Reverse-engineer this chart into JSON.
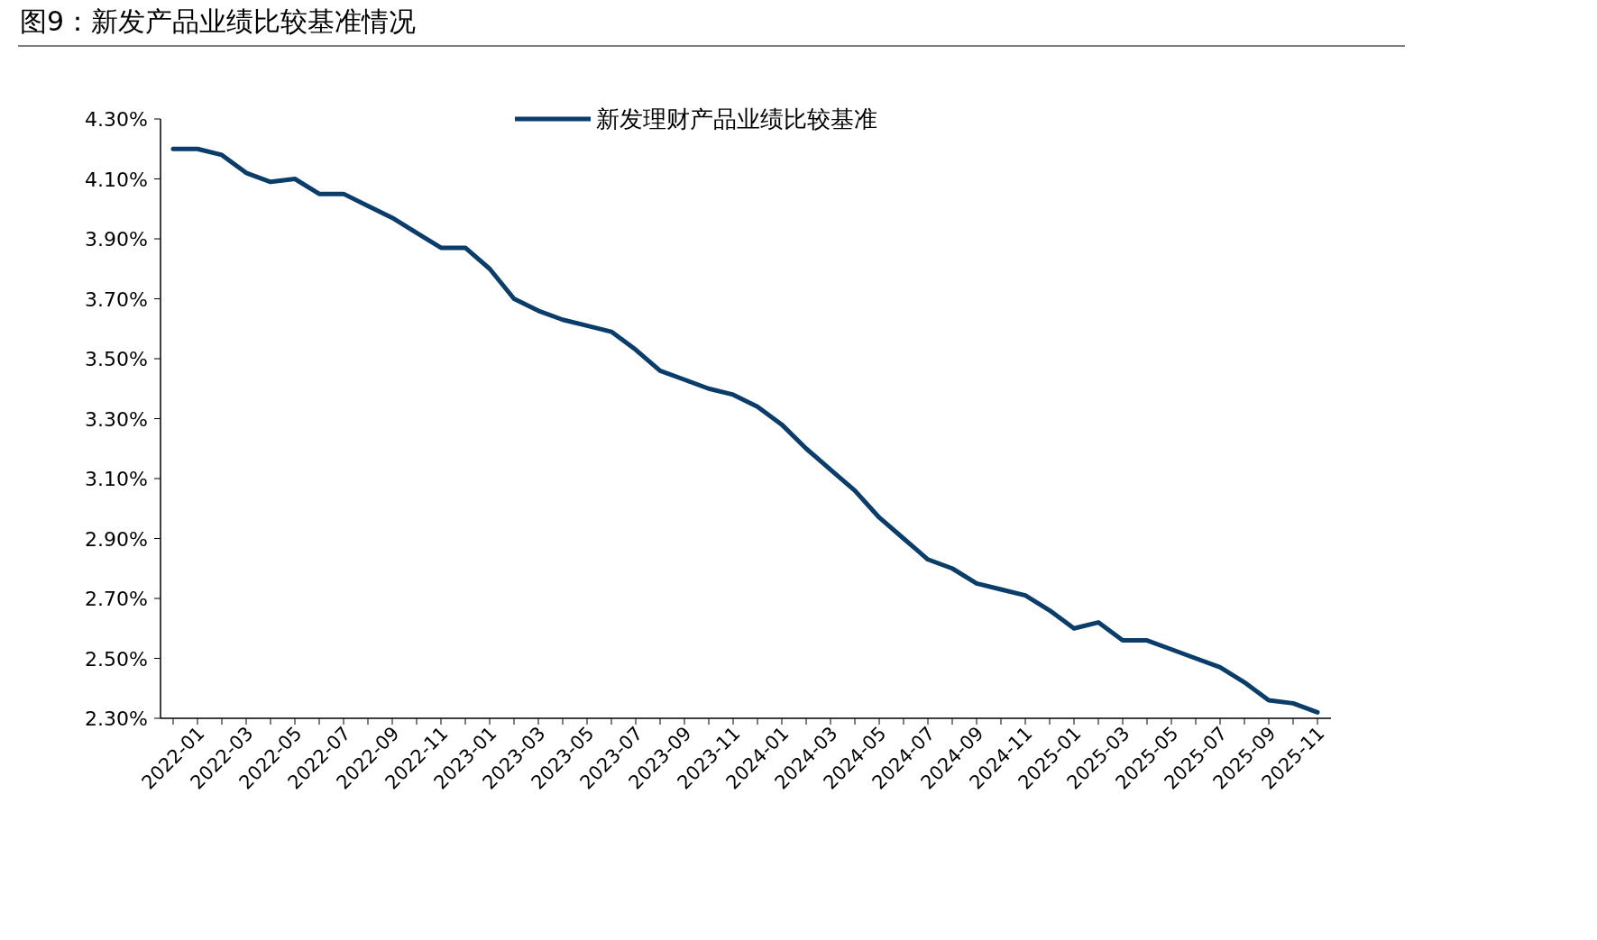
{
  "chart_data": {
    "type": "line",
    "title": "图9：新发产品业绩比较基准情况",
    "categories": [
      "2022-01",
      null,
      "2022-03",
      null,
      "2022-05",
      null,
      "2022-07",
      null,
      "2022-09",
      null,
      "2022-11",
      null,
      "2023-01",
      null,
      "2023-03",
      null,
      "2023-05",
      null,
      "2023-07",
      null,
      "2023-09",
      null,
      "2023-11",
      null,
      "2024-01",
      null,
      "2024-03",
      null,
      "2024-05",
      null,
      "2024-07",
      null,
      "2024-09",
      null,
      "2024-11",
      null,
      "2025-01",
      null,
      "2025-03",
      null,
      "2025-05",
      null,
      "2025-07",
      null,
      "2025-09",
      null,
      "2025-11",
      null
    ],
    "series": [
      {
        "name": "新发理财产品业绩比较基准",
        "color": "#0b3d6b",
        "values": [
          4.2,
          4.2,
          4.18,
          4.12,
          4.09,
          4.1,
          4.05,
          4.05,
          4.01,
          3.97,
          3.92,
          3.87,
          3.87,
          3.8,
          3.7,
          3.66,
          3.63,
          3.61,
          3.59,
          3.53,
          3.46,
          3.43,
          3.4,
          3.38,
          3.34,
          3.28,
          3.2,
          3.13,
          3.06,
          2.97,
          2.9,
          2.83,
          2.8,
          2.75,
          2.73,
          2.71,
          2.66,
          2.6,
          2.62,
          2.56,
          2.56,
          2.53,
          2.5,
          2.47,
          2.42,
          2.36,
          2.35,
          2.32
        ]
      }
    ],
    "ylim": [
      2.3,
      4.3
    ],
    "yticks": [
      {
        "value": 2.3,
        "label": "2.30%"
      },
      {
        "value": 2.5,
        "label": "2.50%"
      },
      {
        "value": 2.7,
        "label": "2.70%"
      },
      {
        "value": 2.9,
        "label": "2.90%"
      },
      {
        "value": 3.1,
        "label": "3.10%"
      },
      {
        "value": 3.3,
        "label": "3.30%"
      },
      {
        "value": 3.5,
        "label": "3.50%"
      },
      {
        "value": 3.7,
        "label": "3.70%"
      },
      {
        "value": 3.9,
        "label": "3.90%"
      },
      {
        "value": 4.1,
        "label": "4.10%"
      },
      {
        "value": 4.3,
        "label": "4.30%"
      }
    ],
    "legend": "top",
    "grid": false,
    "marker": "none",
    "line_style": "solid"
  }
}
